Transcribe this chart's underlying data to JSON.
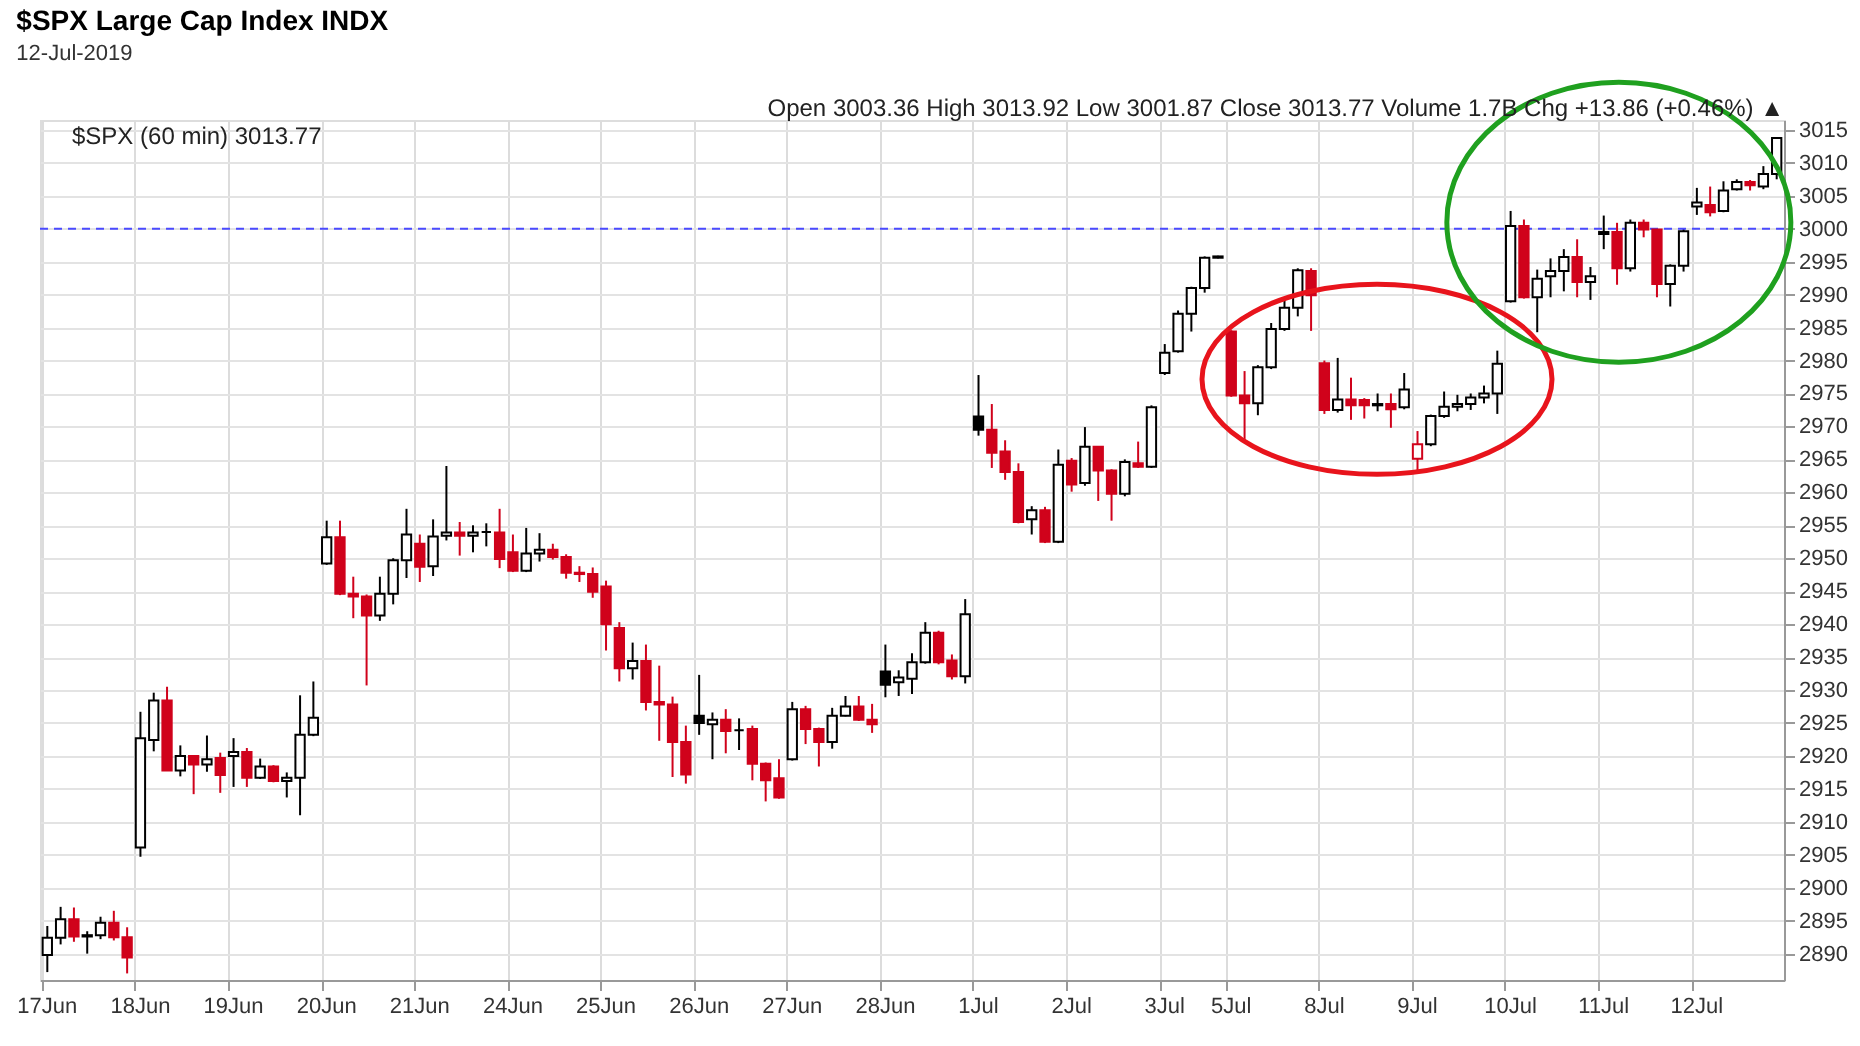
{
  "chart_data": {
    "type": "candlestick",
    "title": "$SPX Large Cap Index INDX",
    "subtitle": "12-Jul-2019",
    "categories": [
      "17Jun",
      null,
      null,
      null,
      null,
      null,
      null,
      "18Jun",
      null,
      null,
      null,
      null,
      null,
      null,
      "19Jun",
      null,
      null,
      null,
      null,
      null,
      null,
      "20Jun",
      null,
      null,
      null,
      null,
      null,
      null,
      "21Jun",
      null,
      null,
      null,
      null,
      null,
      null,
      "24Jun",
      null,
      null,
      null,
      null,
      null,
      null,
      "25Jun",
      null,
      null,
      null,
      null,
      null,
      null,
      "26Jun",
      null,
      null,
      null,
      null,
      null,
      null,
      "27Jun",
      null,
      null,
      null,
      null,
      null,
      null,
      "28Jun",
      null,
      null,
      null,
      null,
      null,
      null,
      "1Jul",
      null,
      null,
      null,
      null,
      null,
      null,
      "2Jul",
      null,
      null,
      null,
      null,
      null,
      null,
      "3Jul",
      null,
      null,
      null,
      null,
      "5Jul",
      null,
      null,
      null,
      null,
      null,
      null,
      "8Jul",
      null,
      null,
      null,
      null,
      null,
      null,
      "9Jul",
      null,
      null,
      null,
      null,
      null,
      null,
      "10Jul",
      null,
      null,
      null,
      null,
      null,
      null,
      "11Jul",
      null,
      null,
      null,
      null,
      null,
      null,
      "12Jul",
      null,
      null,
      null,
      null,
      null,
      null
    ],
    "ohlc": [
      [
        2889.8,
        2894.2,
        2887.2,
        2892.4
      ],
      [
        2892.4,
        2897.1,
        2891.4,
        2895.2
      ],
      [
        2895.2,
        2897.0,
        2891.8,
        2892.6
      ],
      [
        2892.6,
        2893.4,
        2890.0,
        2892.8
      ],
      [
        2892.8,
        2895.6,
        2892.2,
        2894.7
      ],
      [
        2894.7,
        2896.5,
        2892.0,
        2892.5
      ],
      [
        2892.5,
        2894.0,
        2887.0,
        2889.4
      ],
      [
        2906.1,
        2926.7,
        2904.7,
        2922.7
      ],
      [
        2922.4,
        2929.6,
        2920.7,
        2928.4
      ],
      [
        2928.4,
        2930.5,
        2917.8,
        2917.8
      ],
      [
        2917.8,
        2921.6,
        2916.9,
        2920.0
      ],
      [
        2920.0,
        2920.1,
        2914.2,
        2918.7
      ],
      [
        2918.7,
        2923.1,
        2917.6,
        2919.5
      ],
      [
        2919.7,
        2920.5,
        2914.4,
        2917.1
      ],
      [
        2920.0,
        2922.7,
        2915.3,
        2920.6
      ],
      [
        2920.6,
        2921.2,
        2915.3,
        2916.7
      ],
      [
        2916.7,
        2919.6,
        2916.5,
        2918.4
      ],
      [
        2918.4,
        2918.6,
        2916.0,
        2916.2
      ],
      [
        2916.2,
        2917.5,
        2913.7,
        2916.7
      ],
      [
        2916.7,
        2929.2,
        2911.0,
        2923.2
      ],
      [
        2923.2,
        2931.3,
        2923.0,
        2925.8
      ],
      [
        2949.2,
        2955.7,
        2949.0,
        2953.2
      ],
      [
        2953.2,
        2955.7,
        2944.4,
        2944.6
      ],
      [
        2944.6,
        2947.2,
        2940.9,
        2944.2
      ],
      [
        2944.2,
        2944.5,
        2930.7,
        2941.3
      ],
      [
        2941.3,
        2947.2,
        2940.5,
        2944.6
      ],
      [
        2944.6,
        2950.0,
        2943.0,
        2949.7
      ],
      [
        2949.7,
        2957.5,
        2947.0,
        2953.6
      ],
      [
        2952.2,
        2953.6,
        2946.4,
        2948.7
      ],
      [
        2948.8,
        2955.9,
        2947.3,
        2953.3
      ],
      [
        2953.4,
        2964.0,
        2952.7,
        2953.9
      ],
      [
        2953.9,
        2955.5,
        2950.4,
        2953.4
      ],
      [
        2953.4,
        2955.0,
        2950.9,
        2953.9
      ],
      [
        2954.0,
        2955.3,
        2951.8,
        2954.0
      ],
      [
        2953.9,
        2957.5,
        2948.5,
        2949.9
      ],
      [
        2950.9,
        2953.6,
        2947.9,
        2948.1
      ],
      [
        2948.1,
        2954.6,
        2947.9,
        2950.7
      ],
      [
        2950.7,
        2953.8,
        2949.5,
        2951.3
      ],
      [
        2951.3,
        2952.2,
        2949.8,
        2950.2
      ],
      [
        2950.2,
        2950.6,
        2946.9,
        2947.8
      ],
      [
        2947.8,
        2948.8,
        2946.4,
        2947.6
      ],
      [
        2947.6,
        2948.6,
        2944.0,
        2944.9
      ],
      [
        2945.7,
        2946.6,
        2936.0,
        2940.0
      ],
      [
        2939.4,
        2940.3,
        2931.3,
        2933.3
      ],
      [
        2933.3,
        2937.2,
        2931.6,
        2934.4
      ],
      [
        2934.4,
        2936.9,
        2926.9,
        2928.2
      ],
      [
        2928.2,
        2933.7,
        2922.3,
        2927.8
      ],
      [
        2927.8,
        2929.0,
        2916.8,
        2922.1
      ],
      [
        2922.1,
        2924.6,
        2915.8,
        2917.2
      ],
      [
        2926.1,
        2932.3,
        2923.2,
        2925.0
      ],
      [
        2924.8,
        2926.6,
        2919.5,
        2925.5
      ],
      [
        2925.5,
        2927.1,
        2920.4,
        2923.8
      ],
      [
        2923.9,
        2925.7,
        2920.9,
        2923.9
      ],
      [
        2924.1,
        2924.6,
        2916.3,
        2918.8
      ],
      [
        2918.8,
        2919.0,
        2913.1,
        2916.3
      ],
      [
        2916.6,
        2919.5,
        2913.5,
        2913.7
      ],
      [
        2919.5,
        2928.2,
        2919.3,
        2927.1
      ],
      [
        2927.1,
        2927.6,
        2921.8,
        2924.1
      ],
      [
        2924.1,
        2924.3,
        2918.4,
        2922.1
      ],
      [
        2922.1,
        2927.3,
        2921.1,
        2926.1
      ],
      [
        2926.1,
        2929.1,
        2926.0,
        2927.5
      ],
      [
        2927.5,
        2929.1,
        2925.3,
        2925.5
      ],
      [
        2925.5,
        2927.9,
        2923.5,
        2924.8
      ],
      [
        2932.8,
        2936.9,
        2928.9,
        2930.8
      ],
      [
        2931.2,
        2933.0,
        2929.1,
        2931.9
      ],
      [
        2931.7,
        2935.6,
        2929.4,
        2934.2
      ],
      [
        2934.2,
        2940.3,
        2934.0,
        2938.7
      ],
      [
        2938.7,
        2939.0,
        2933.9,
        2934.2
      ],
      [
        2934.5,
        2935.4,
        2931.6,
        2932.1
      ],
      [
        2932.1,
        2943.8,
        2931.0,
        2941.5
      ],
      [
        2971.5,
        2977.8,
        2968.6,
        2969.5
      ],
      [
        2969.5,
        2973.4,
        2963.7,
        2966.0
      ],
      [
        2966.2,
        2967.9,
        2961.9,
        2963.1
      ],
      [
        2963.1,
        2964.4,
        2955.3,
        2955.5
      ],
      [
        2955.9,
        2957.9,
        2953.6,
        2957.3
      ],
      [
        2957.3,
        2957.8,
        2952.3,
        2952.5
      ],
      [
        2952.5,
        2966.5,
        2952.3,
        2964.2
      ],
      [
        2964.8,
        2965.2,
        2960.1,
        2961.2
      ],
      [
        2961.4,
        2969.9,
        2961.0,
        2966.9
      ],
      [
        2966.9,
        2967.0,
        2958.7,
        2963.3
      ],
      [
        2963.3,
        2963.5,
        2955.7,
        2959.8
      ],
      [
        2959.8,
        2965.0,
        2959.4,
        2964.6
      ],
      [
        2964.4,
        2967.7,
        2963.7,
        2963.9
      ],
      [
        2963.9,
        2973.2,
        2963.7,
        2972.9
      ],
      [
        2978.1,
        2982.5,
        2977.8,
        2981.2
      ],
      [
        2981.4,
        2987.6,
        2981.2,
        2987.1
      ],
      [
        2987.1,
        2991.2,
        2984.4,
        2991.0
      ],
      [
        2991.0,
        2995.8,
        2990.3,
        2995.6
      ],
      [
        2995.6,
        2995.9,
        2995.5,
        2995.8
      ],
      [
        2984.4,
        2984.6,
        2974.5,
        2974.7
      ],
      [
        2974.7,
        2978.4,
        2967.9,
        2973.5
      ],
      [
        2973.5,
        2979.3,
        2971.7,
        2979.0
      ],
      [
        2979.0,
        2985.7,
        2978.7,
        2984.8
      ],
      [
        2984.8,
        2989.4,
        2984.5,
        2988.0
      ],
      [
        2988.0,
        2994.0,
        2986.7,
        2993.7
      ],
      [
        2993.6,
        2994.0,
        2984.5,
        2989.9
      ],
      [
        2979.6,
        2980.0,
        2971.9,
        2972.5
      ],
      [
        2972.5,
        2980.4,
        2972.1,
        2974.1
      ],
      [
        2974.1,
        2977.4,
        2971.0,
        2973.2
      ],
      [
        2974.0,
        2974.3,
        2971.2,
        2973.2
      ],
      [
        2973.2,
        2975.0,
        2972.3,
        2973.4
      ],
      [
        2973.4,
        2975.0,
        2969.8,
        2972.6
      ],
      [
        2972.9,
        2978.1,
        2972.6,
        2975.6
      ],
      [
        2965.1,
        2969.3,
        2963.3,
        2967.3
      ],
      [
        2967.3,
        2971.8,
        2967.0,
        2971.6
      ],
      [
        2971.6,
        2975.3,
        2971.3,
        2973.0
      ],
      [
        2973.0,
        2974.8,
        2972.3,
        2973.4
      ],
      [
        2973.4,
        2975.0,
        2972.5,
        2974.4
      ],
      [
        2974.4,
        2976.2,
        2973.5,
        2975.0
      ],
      [
        2975.0,
        2981.5,
        2971.9,
        2979.5
      ],
      [
        2989.0,
        3002.7,
        2988.8,
        3000.4
      ],
      [
        3000.4,
        3001.4,
        2989.4,
        2989.6
      ],
      [
        2989.6,
        2993.8,
        2984.3,
        2992.4
      ],
      [
        2992.8,
        2995.5,
        2989.6,
        2993.6
      ],
      [
        2993.6,
        2996.9,
        2990.5,
        2995.7
      ],
      [
        2995.7,
        2998.4,
        2989.6,
        2991.9
      ],
      [
        2991.9,
        2994.2,
        2989.2,
        2992.8
      ],
      [
        2999.2,
        3002.0,
        2996.9,
        2999.5
      ],
      [
        2999.5,
        3000.9,
        2991.5,
        2994.0
      ],
      [
        2994.0,
        3001.4,
        2993.5,
        3000.9
      ],
      [
        3000.9,
        3001.4,
        2998.7,
        2999.9
      ],
      [
        2999.9,
        2999.9,
        2989.6,
        2991.6
      ],
      [
        2991.6,
        2994.6,
        2988.2,
        2994.4
      ],
      [
        2994.4,
        3000.0,
        2993.5,
        2999.6
      ],
      [
        3003.36,
        3006.2,
        3002.1,
        3004.0
      ],
      [
        3003.6,
        3006.4,
        3001.87,
        3002.5
      ],
      [
        3002.7,
        3007.2,
        3002.5,
        3005.8
      ],
      [
        3006.0,
        3007.5,
        3005.8,
        3007.1
      ],
      [
        3007.1,
        3007.4,
        3005.8,
        3006.6
      ],
      [
        3006.4,
        3009.5,
        3006.0,
        3008.3
      ],
      [
        3008.3,
        3013.92,
        3007.5,
        3013.77
      ]
    ],
    "colors": [
      "#000000",
      "#000000",
      "#d0021b",
      "#000000",
      "#000000",
      "#d0021b",
      "#d0021b",
      "#000000",
      "#000000",
      "#d0021b",
      "#000000",
      "#d0021b",
      "#000000",
      "#d0021b",
      "#000000",
      "#d0021b",
      "#000000",
      "#d0021b",
      "#000000",
      "#000000",
      "#000000",
      "#000000",
      "#d0021b",
      "#d0021b",
      "#d0021b",
      "#000000",
      "#000000",
      "#000000",
      "#d0021b",
      "#000000",
      "#000000",
      "#d0021b",
      "#000000",
      "#000000",
      "#d0021b",
      "#d0021b",
      "#000000",
      "#000000",
      "#d0021b",
      "#d0021b",
      "#d0021b",
      "#d0021b",
      "#d0021b",
      "#d0021b",
      "#000000",
      "#d0021b",
      "#d0021b",
      "#d0021b",
      "#d0021b",
      "#000000",
      "#000000",
      "#d0021b",
      "#000000",
      "#d0021b",
      "#d0021b",
      "#d0021b",
      "#000000",
      "#d0021b",
      "#d0021b",
      "#000000",
      "#000000",
      "#d0021b",
      "#d0021b",
      "#000000",
      "#000000",
      "#000000",
      "#000000",
      "#d0021b",
      "#d0021b",
      "#000000",
      "#000000",
      "#d0021b",
      "#d0021b",
      "#d0021b",
      "#000000",
      "#d0021b",
      "#000000",
      "#d0021b",
      "#000000",
      "#d0021b",
      "#d0021b",
      "#000000",
      "#d0021b",
      "#000000",
      "#000000",
      "#000000",
      "#000000",
      "#000000",
      "#000000",
      "#d0021b",
      "#d0021b",
      "#000000",
      "#000000",
      "#000000",
      "#000000",
      "#d0021b",
      "#d0021b",
      "#000000",
      "#d0021b",
      "#d0021b",
      "#000000",
      "#d0021b",
      "#000000",
      "#d0021b",
      "#000000",
      "#000000",
      "#000000",
      "#000000",
      "#000000",
      "#000000",
      "#000000",
      "#d0021b",
      "#000000",
      "#000000",
      "#000000",
      "#d0021b",
      "#000000",
      "#000000",
      "#d0021b",
      "#000000",
      "#d0021b",
      "#d0021b",
      "#000000",
      "#000000",
      "#000000",
      "#d0021b",
      "#000000",
      "#000000",
      "#d0021b",
      "#000000",
      "#000000"
    ],
    "ylim": [
      2886,
      3016.5
    ],
    "yticks": [
      2890,
      2895,
      2900,
      2905,
      2910,
      2915,
      2920,
      2925,
      2930,
      2935,
      2940,
      2945,
      2950,
      2955,
      2960,
      2965,
      2970,
      2975,
      2980,
      2985,
      2990,
      2995,
      3000,
      3005,
      3010,
      3015
    ],
    "grid": true,
    "ref_lines": [
      {
        "axis": "y",
        "value": 3000,
        "color": "#4a4aff",
        "line_style": "dashed"
      }
    ],
    "annotations": [
      "Open 3003.36 High 3013.92 Low 3001.87 Close 3013.77 Volume 1.7B Chg +13.86 (+0.46%) ▲",
      "$SPX (60 min) 3013.77"
    ]
  }
}
